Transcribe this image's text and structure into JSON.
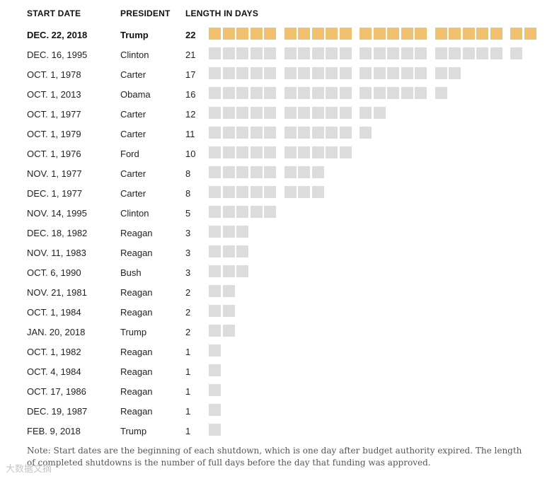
{
  "chart_data": {
    "type": "table",
    "columns": [
      "START DATE",
      "PRESIDENT",
      "LENGTH IN DAYS"
    ],
    "rows": [
      {
        "start_date": "DEC. 22, 2018",
        "president": "Trump",
        "days": 22,
        "highlight": true
      },
      {
        "start_date": "DEC. 16, 1995",
        "president": "Clinton",
        "days": 21
      },
      {
        "start_date": "OCT. 1, 1978",
        "president": "Carter",
        "days": 17
      },
      {
        "start_date": "OCT. 1, 2013",
        "president": "Obama",
        "days": 16
      },
      {
        "start_date": "OCT. 1, 1977",
        "president": "Carter",
        "days": 12
      },
      {
        "start_date": "OCT. 1, 1979",
        "president": "Carter",
        "days": 11
      },
      {
        "start_date": "OCT. 1, 1976",
        "president": "Ford",
        "days": 10
      },
      {
        "start_date": "NOV. 1, 1977",
        "president": "Carter",
        "days": 8
      },
      {
        "start_date": "DEC. 1, 1977",
        "president": "Carter",
        "days": 8
      },
      {
        "start_date": "NOV. 14, 1995",
        "president": "Clinton",
        "days": 5
      },
      {
        "start_date": "DEC. 18, 1982",
        "president": "Reagan",
        "days": 3
      },
      {
        "start_date": "NOV. 11, 1983",
        "president": "Reagan",
        "days": 3
      },
      {
        "start_date": "OCT. 6, 1990",
        "president": "Bush",
        "days": 3
      },
      {
        "start_date": "NOV. 21, 1981",
        "president": "Reagan",
        "days": 2
      },
      {
        "start_date": "OCT. 1, 1984",
        "president": "Reagan",
        "days": 2
      },
      {
        "start_date": "JAN. 20, 2018",
        "president": "Trump",
        "days": 2
      },
      {
        "start_date": "OCT. 1, 1982",
        "president": "Reagan",
        "days": 1
      },
      {
        "start_date": "OCT. 4, 1984",
        "president": "Reagan",
        "days": 1
      },
      {
        "start_date": "OCT. 17, 1986",
        "president": "Reagan",
        "days": 1
      },
      {
        "start_date": "DEC. 19, 1987",
        "president": "Reagan",
        "days": 1
      },
      {
        "start_date": "FEB. 9, 2018",
        "president": "Trump",
        "days": 1
      }
    ],
    "group_size": 5,
    "colors": {
      "highlight": "#f2c170",
      "default": "#dcdcdc"
    },
    "note": "Note: Start dates are the beginning of each shutdown, which is one day after budget authority expired. The length of completed shutdowns is the number of full days before the day that funding was approved."
  },
  "watermark": "大数据文摘"
}
